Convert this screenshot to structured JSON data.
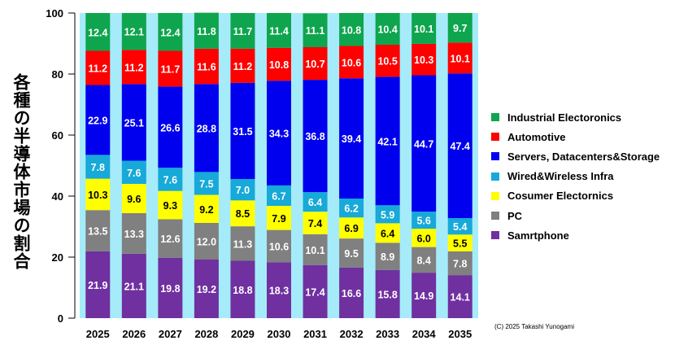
{
  "chart_data": {
    "type": "bar",
    "stacked": true,
    "ylabel": "各種の半導体市場の割合（%）",
    "ylim": [
      0,
      100
    ],
    "yticks": [
      0,
      20,
      40,
      60,
      80,
      100
    ],
    "categories": [
      "2025",
      "2026",
      "2027",
      "2028",
      "2029",
      "2030",
      "2031",
      "2032",
      "2033",
      "2034",
      "2035"
    ],
    "series": [
      {
        "name": "Samrtphone",
        "color": "#7030a0",
        "values": [
          21.9,
          21.1,
          19.8,
          19.2,
          18.8,
          18.3,
          17.4,
          16.6,
          15.8,
          14.9,
          14.1
        ]
      },
      {
        "name": "PC",
        "color": "#808080",
        "values": [
          13.5,
          13.3,
          12.6,
          12.0,
          11.3,
          10.6,
          10.1,
          9.5,
          8.9,
          8.4,
          7.8
        ]
      },
      {
        "name": "Cosumer Electornics",
        "color": "#ffff00",
        "values": [
          10.3,
          9.6,
          9.3,
          9.2,
          8.5,
          7.9,
          7.4,
          6.9,
          6.4,
          6.0,
          5.5
        ]
      },
      {
        "name": "Wired&Wireless Infra",
        "color": "#17a9d8",
        "values": [
          7.8,
          7.6,
          7.6,
          7.5,
          7.0,
          6.7,
          6.4,
          6.2,
          5.9,
          5.6,
          5.4
        ]
      },
      {
        "name": "Servers, Datacenters&Storage",
        "color": "#0000ee",
        "values": [
          22.9,
          25.1,
          26.6,
          28.8,
          31.5,
          34.3,
          36.8,
          39.4,
          42.1,
          44.7,
          47.4
        ]
      },
      {
        "name": "Automotive",
        "color": "#ff0000",
        "values": [
          11.2,
          11.2,
          11.7,
          11.6,
          11.2,
          10.8,
          10.7,
          10.6,
          10.5,
          10.3,
          10.1
        ]
      },
      {
        "name": "Industrial Electoronics",
        "color": "#0fa54e",
        "values": [
          12.4,
          12.1,
          12.4,
          11.8,
          11.7,
          11.4,
          11.1,
          10.8,
          10.4,
          10.1,
          9.7
        ]
      }
    ],
    "legend_position": "right",
    "plot_background": "#a6ebfa"
  },
  "ylabel_text": "各種の半導体市場の割合（%）",
  "copyright": "(C) 2025 Takashi Yunogami"
}
